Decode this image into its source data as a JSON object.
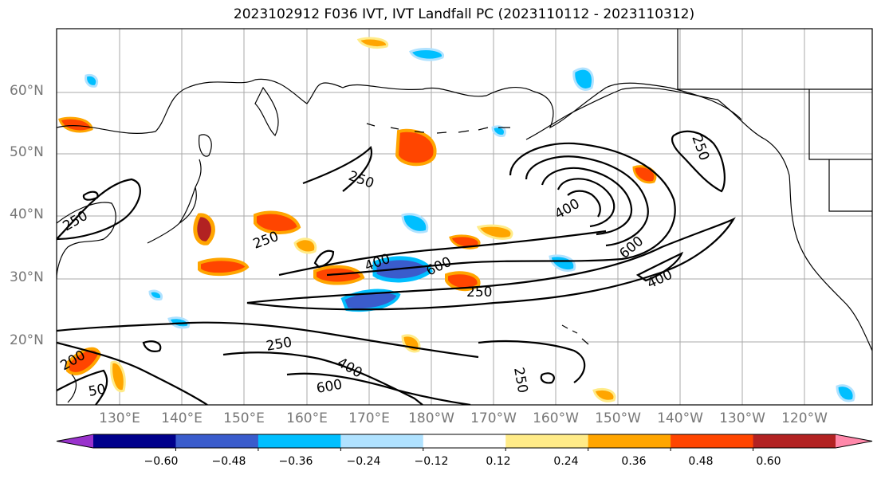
{
  "title": "2023102912 F036 IVT, IVT Landfall PC (2023110112 - 2023110312)",
  "lat_labels": [
    "60°N",
    "50°N",
    "40°N",
    "30°N",
    "20°N"
  ],
  "lon_labels": [
    "130°E",
    "140°E",
    "150°E",
    "160°E",
    "170°E",
    "180°W",
    "170°W",
    "160°W",
    "150°W",
    "140°W",
    "130°W",
    "120°W"
  ],
  "contour_labels": [
    "250",
    "250",
    "250",
    "250",
    "250",
    "250",
    "400",
    "400",
    "400",
    "400",
    "600",
    "600",
    "600",
    "250",
    "200",
    "50"
  ],
  "colorbar": {
    "colors": [
      "#9932cc",
      "#00008b",
      "#3a5ccc",
      "#00bfff",
      "#b0e2ff",
      "#ffffff",
      "#ffeb88",
      "#ffa500",
      "#ff4500",
      "#b22222",
      "#ff88aa"
    ],
    "ticks": [
      "−0.60",
      "−0.48",
      "−0.36",
      "−0.24",
      "−0.12",
      "0.12",
      "0.24",
      "0.36",
      "0.48",
      "0.60"
    ]
  }
}
